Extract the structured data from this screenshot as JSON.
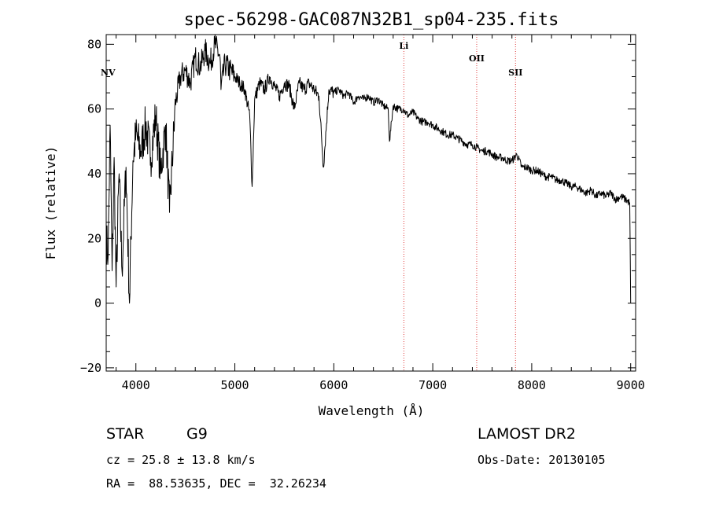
{
  "chart_data": {
    "type": "line",
    "title": "spec-56298-GAC087N32B1_sp04-235.fits",
    "xlabel": "Wavelength (Å)",
    "ylabel": "Flux (relative)",
    "xlim": [
      3700,
      9050
    ],
    "ylim": [
      -21,
      83
    ],
    "xticks": [
      4000,
      5000,
      6000,
      7000,
      8000,
      9000
    ],
    "yticks": [
      -20,
      0,
      20,
      40,
      60,
      80
    ],
    "grid": false,
    "series": [
      {
        "color": "#000000",
        "x": [
          3700,
          3720,
          3740,
          3760,
          3780,
          3800,
          3830,
          3860,
          3900,
          3935,
          3970,
          4000,
          4050,
          4100,
          4150,
          4200,
          4250,
          4300,
          4340,
          4400,
          4450,
          4500,
          4550,
          4600,
          4650,
          4700,
          4750,
          4800,
          4850,
          4860,
          4900,
          4950,
          5000,
          5050,
          5100,
          5150,
          5175,
          5200,
          5250,
          5300,
          5350,
          5400,
          5450,
          5500,
          5550,
          5600,
          5650,
          5700,
          5750,
          5800,
          5850,
          5895,
          5950,
          6000,
          6050,
          6100,
          6150,
          6200,
          6250,
          6300,
          6350,
          6400,
          6450,
          6500,
          6550,
          6563,
          6600,
          6650,
          6700,
          6750,
          6800,
          6850,
          6900,
          6950,
          7000,
          7050,
          7100,
          7150,
          7200,
          7250,
          7300,
          7350,
          7400,
          7450,
          7500,
          7550,
          7600,
          7650,
          7700,
          7750,
          7800,
          7850,
          7900,
          7950,
          8000,
          8050,
          8100,
          8150,
          8200,
          8250,
          8300,
          8350,
          8400,
          8450,
          8500,
          8550,
          8600,
          8650,
          8700,
          8750,
          8800,
          8850,
          8900,
          8950,
          8990,
          9000
        ],
        "y": [
          20,
          15,
          55,
          10,
          45,
          5,
          40,
          10,
          42,
          0,
          44,
          52,
          47,
          55,
          45,
          58,
          40,
          55,
          28,
          62,
          70,
          72,
          68,
          76,
          73,
          78,
          74,
          80,
          76,
          66,
          74,
          72,
          70,
          68,
          66,
          58,
          36,
          63,
          68,
          66,
          70,
          67,
          64,
          68,
          67,
          60,
          68,
          66,
          68,
          66,
          64,
          42,
          66,
          65,
          66,
          64,
          65,
          62,
          64,
          63,
          64,
          62,
          63,
          61,
          60,
          50,
          61,
          60,
          60,
          58,
          59,
          57,
          56,
          56,
          55,
          54,
          53,
          52,
          52,
          51,
          50,
          49,
          49,
          48,
          47,
          47,
          46,
          45,
          45,
          44,
          44,
          46,
          42,
          42,
          41,
          41,
          40,
          39,
          39,
          38,
          38,
          37,
          36,
          36,
          35,
          34,
          35,
          33,
          34,
          33,
          34,
          32,
          33,
          32,
          31,
          0
        ]
      }
    ],
    "annotations": [
      {
        "label": "NV",
        "x": 3750
      },
      {
        "label": "Li",
        "x": 6708
      },
      {
        "label": "OII",
        "x": 7444
      },
      {
        "label": "SII",
        "x": 7836
      }
    ]
  },
  "info": {
    "class_label": "STAR",
    "subclass": "G9",
    "survey": "LAMOST DR2",
    "cz": "cz = 25.8 ± 13.8 km/s",
    "obs_date": "Obs-Date: 20130105",
    "radec": "RA =  88.53635, DEC =  32.26234"
  }
}
